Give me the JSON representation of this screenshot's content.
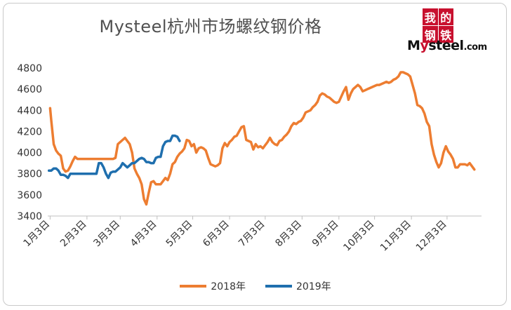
{
  "chart_data": {
    "type": "line",
    "title": "Mysteel杭州市场螺纹钢价格",
    "ylim": [
      3400,
      4800
    ],
    "yticks": [
      "3400",
      "3600",
      "3800",
      "4000",
      "4200",
      "4400",
      "4600",
      "4800"
    ],
    "xlim": [
      1,
      366
    ],
    "xticks": [
      {
        "label": "1月3日",
        "day": 3
      },
      {
        "label": "2月3日",
        "day": 34
      },
      {
        "label": "3月3日",
        "day": 62
      },
      {
        "label": "4月3日",
        "day": 93
      },
      {
        "label": "5月3日",
        "day": 123
      },
      {
        "label": "6月3日",
        "day": 154
      },
      {
        "label": "7月3日",
        "day": 184
      },
      {
        "label": "8月3日",
        "day": 215
      },
      {
        "label": "9月3日",
        "day": 246
      },
      {
        "label": "10月3日",
        "day": 276
      },
      {
        "label": "11月3日",
        "day": 307
      },
      {
        "label": "12月3日",
        "day": 337
      }
    ],
    "legend_position": "bottom",
    "series": [
      {
        "name": "2018年",
        "color": "#ED7D31",
        "x": [
          3,
          4,
          6,
          8,
          10,
          12,
          14,
          16,
          18,
          20,
          22,
          24,
          26,
          28,
          30,
          32,
          34,
          36,
          38,
          42,
          46,
          50,
          54,
          56,
          58,
          60,
          62,
          64,
          66,
          68,
          70,
          72,
          74,
          76,
          78,
          80,
          82,
          84,
          86,
          88,
          90,
          92,
          94,
          96,
          98,
          100,
          102,
          104,
          106,
          108,
          110,
          112,
          114,
          116,
          118,
          120,
          122,
          124,
          126,
          128,
          130,
          132,
          134,
          136,
          138,
          140,
          142,
          144,
          146,
          148,
          150,
          152,
          154,
          156,
          158,
          160,
          162,
          164,
          166,
          168,
          170,
          172,
          174,
          176,
          178,
          180,
          182,
          184,
          186,
          188,
          190,
          192,
          194,
          196,
          198,
          200,
          202,
          204,
          206,
          208,
          210,
          212,
          214,
          216,
          218,
          220,
          222,
          224,
          226,
          228,
          230,
          232,
          234,
          236,
          238,
          240,
          242,
          244,
          246,
          248,
          250,
          252,
          254,
          256,
          258,
          260,
          262,
          264,
          266,
          268,
          270,
          272,
          274,
          276,
          278,
          280,
          282,
          284,
          286,
          288,
          290,
          292,
          294,
          296,
          298,
          300,
          302,
          304,
          306,
          308,
          310,
          312,
          314,
          316,
          318,
          320,
          322,
          324,
          326,
          328,
          330,
          332,
          334,
          336,
          338,
          340,
          342,
          344,
          346,
          348,
          350,
          352,
          354,
          356,
          358,
          360
        ],
        "values": [
          4420,
          4300,
          4080,
          4020,
          3990,
          3970,
          3850,
          3820,
          3830,
          3870,
          3920,
          3960,
          3940,
          3940,
          3940,
          3940,
          3940,
          3940,
          3940,
          3940,
          3940,
          3940,
          3940,
          3940,
          3950,
          4080,
          4100,
          4120,
          4140,
          4110,
          4080,
          4000,
          3850,
          3800,
          3760,
          3700,
          3560,
          3510,
          3620,
          3720,
          3730,
          3700,
          3700,
          3700,
          3730,
          3760,
          3740,
          3800,
          3890,
          3910,
          3960,
          3990,
          4010,
          4040,
          4120,
          4110,
          4060,
          4080,
          4000,
          4040,
          4050,
          4040,
          4020,
          3950,
          3890,
          3880,
          3870,
          3880,
          3900,
          4040,
          4090,
          4060,
          4100,
          4120,
          4150,
          4160,
          4200,
          4240,
          4250,
          4120,
          4110,
          4100,
          4030,
          4080,
          4050,
          4060,
          4040,
          4070,
          4100,
          4140,
          4100,
          4080,
          4070,
          4110,
          4120,
          4150,
          4170,
          4200,
          4250,
          4280,
          4270,
          4290,
          4300,
          4330,
          4380,
          4390,
          4400,
          4430,
          4450,
          4480,
          4540,
          4560,
          4550,
          4530,
          4520,
          4500,
          4480,
          4470,
          4480,
          4530,
          4580,
          4620,
          4500,
          4560,
          4600,
          4620,
          4640,
          4620,
          4580,
          4590,
          4600,
          4610,
          4620,
          4630,
          4640,
          4640,
          4650,
          4660,
          4670,
          4660,
          4670,
          4690,
          4700,
          4720,
          4760,
          4760,
          4750,
          4740,
          4720,
          4640,
          4560,
          4450,
          4440,
          4420,
          4370,
          4290,
          4250,
          4080,
          3980,
          3910,
          3860,
          3900,
          4000,
          4060,
          4010,
          3980,
          3940,
          3860,
          3860,
          3890,
          3890,
          3890,
          3880,
          3900,
          3870,
          3840
        ]
      },
      {
        "name": "2019年",
        "color": "#1F6FAE",
        "x": [
          2,
          4,
          6,
          8,
          10,
          12,
          14,
          16,
          18,
          20,
          22,
          24,
          26,
          28,
          30,
          32,
          34,
          36,
          38,
          40,
          42,
          44,
          46,
          48,
          50,
          52,
          54,
          56,
          58,
          60,
          62,
          64,
          66,
          68,
          70,
          72,
          74,
          76,
          78,
          80,
          82,
          84,
          86,
          88,
          90,
          92,
          94,
          96,
          98,
          100,
          102,
          104,
          106,
          108,
          110,
          112
        ],
        "values": [
          3830,
          3830,
          3850,
          3850,
          3830,
          3790,
          3790,
          3780,
          3760,
          3800,
          3800,
          3800,
          3800,
          3800,
          3800,
          3800,
          3800,
          3800,
          3800,
          3800,
          3800,
          3900,
          3900,
          3860,
          3800,
          3760,
          3810,
          3820,
          3820,
          3840,
          3860,
          3900,
          3880,
          3860,
          3880,
          3900,
          3900,
          3920,
          3940,
          3950,
          3940,
          3910,
          3910,
          3900,
          3900,
          3950,
          3960,
          3960,
          4060,
          4100,
          4110,
          4110,
          4160,
          4160,
          4150,
          4110
        ]
      }
    ]
  },
  "logo": {
    "chars": [
      "我",
      "的",
      "钢",
      "铁"
    ],
    "text_prefix": "M",
    "text_y": "y",
    "text_rest": "steel",
    "text_suffix": ".com"
  }
}
